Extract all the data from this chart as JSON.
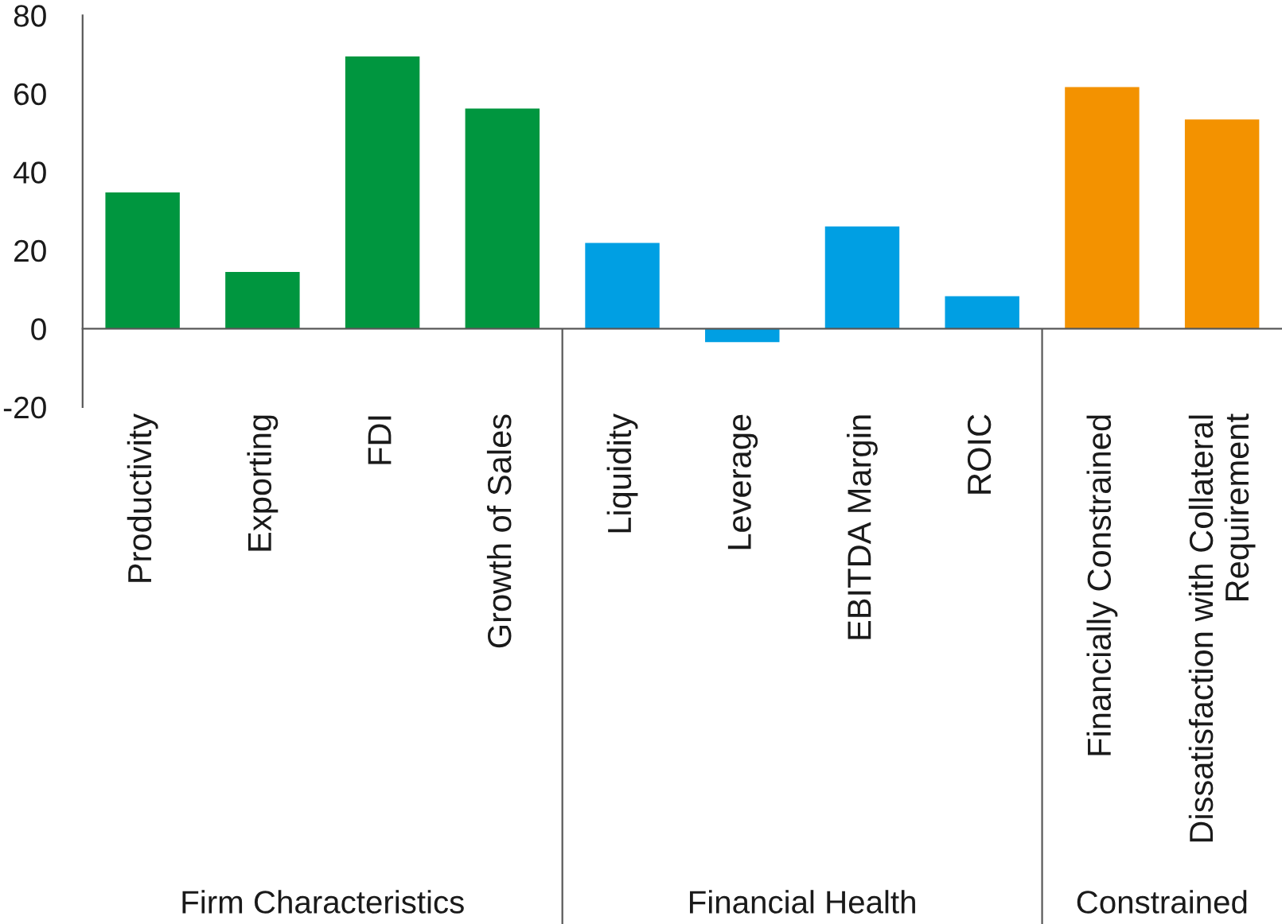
{
  "chart_data": {
    "type": "bar",
    "categories": [
      "Productivity",
      "Exporting",
      "FDI",
      "Growth of Sales",
      "Liquidity",
      "Leverage",
      "EBITDA Margin",
      "ROIC",
      "Financially Constrained",
      "Dissatisfaction with Collateral\nRequirement"
    ],
    "series": [
      {
        "color": "#00963f",
        "values": [
          34.8,
          14.5,
          69.5,
          56.2,
          null,
          null,
          null,
          null,
          null,
          null
        ]
      },
      {
        "color": "#009fe3",
        "values": [
          null,
          null,
          null,
          null,
          21.9,
          -3.4,
          26.1,
          8.3,
          null,
          null
        ]
      },
      {
        "color": "#f39200",
        "values": [
          null,
          null,
          null,
          null,
          null,
          null,
          null,
          null,
          61.7,
          53.4
        ]
      }
    ],
    "annotations": [
      "Firm Characteristics",
      "Financial Health",
      "Constrained"
    ],
    "ylim": [
      -20,
      80
    ],
    "yticks": [
      -20,
      0,
      20,
      40,
      60,
      80
    ]
  }
}
